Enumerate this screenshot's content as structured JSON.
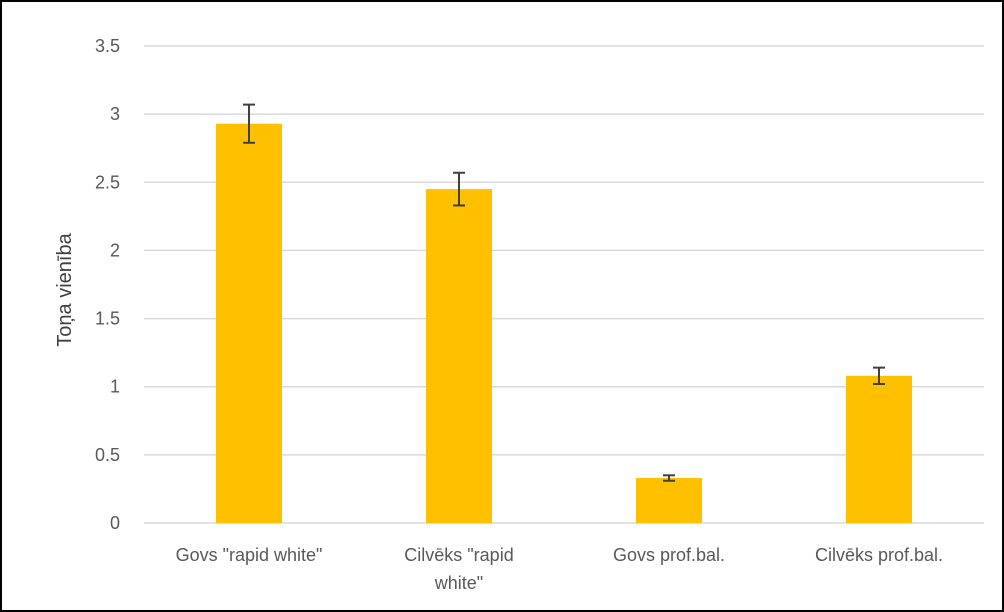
{
  "chart_data": {
    "type": "bar",
    "title": "",
    "xlabel": "",
    "ylabel": "Toņa vienība",
    "categories": [
      [
        "Govs \"rapid white\""
      ],
      [
        "Cilvēks \"rapid",
        "white\""
      ],
      [
        "Govs prof.bal."
      ],
      [
        "Cilvēks prof.bal."
      ]
    ],
    "values": [
      2.93,
      2.45,
      0.33,
      1.08
    ],
    "error": [
      0.14,
      0.12,
      0.02,
      0.06
    ],
    "ylim": [
      0,
      3.5
    ],
    "yticks": [
      "0",
      "0.5",
      "1",
      "1.5",
      "2",
      "2.5",
      "3",
      "3.5"
    ],
    "grid": true,
    "legend": "none",
    "colors": {
      "bar": "#FFC000",
      "error_bar": "#404040",
      "grid": "#D9D9D9"
    }
  }
}
